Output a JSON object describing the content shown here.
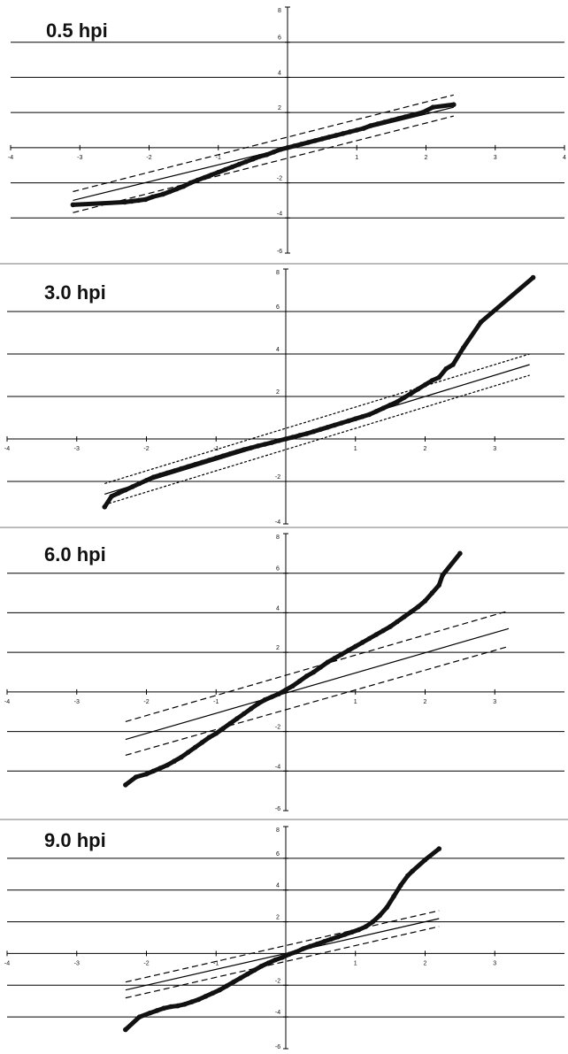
{
  "chart_data": [
    {
      "type": "scatter",
      "title": "0.5 hpi",
      "xlim": [
        -4,
        4
      ],
      "ylim": [
        -6,
        8
      ],
      "x_ticks": [
        "-4",
        "-3",
        "-2",
        "-1",
        "0",
        "1",
        "2",
        "3",
        "4"
      ],
      "y_ticks": [
        "-6",
        "-4",
        "-2",
        "2",
        "4",
        "6",
        "8"
      ],
      "grid": "horizontal",
      "reference_line": {
        "x": [
          -3.1,
          2.4
        ],
        "y": [
          -3.0,
          2.3
        ]
      },
      "envelope": {
        "upper": {
          "x": [
            -3.1,
            2.4
          ],
          "y": [
            -2.5,
            3.0
          ]
        },
        "lower": {
          "x": [
            -3.1,
            2.4
          ],
          "y": [
            -3.7,
            1.8
          ]
        }
      },
      "series": [
        {
          "x": [
            -3.1,
            -2.35,
            -2.25,
            -2.15,
            -2.05,
            -1.95,
            -1.8,
            -1.7,
            -1.6,
            -1.5,
            -1.4,
            -1.3,
            -1.2,
            -1.1,
            -1.0,
            -0.9,
            -0.8,
            -0.7,
            -0.6,
            -0.5,
            -0.4,
            -0.3,
            -0.2,
            -0.1,
            0.0,
            0.1,
            0.2,
            0.3,
            0.4,
            0.5,
            0.6,
            0.7,
            0.8,
            0.9,
            1.0,
            1.1,
            1.2,
            1.3,
            1.4,
            1.5,
            1.6,
            1.7,
            1.8,
            1.95,
            2.1,
            2.4
          ],
          "y": [
            -3.25,
            -3.1,
            -3.05,
            -3.0,
            -2.95,
            -2.8,
            -2.65,
            -2.5,
            -2.35,
            -2.2,
            -2.0,
            -1.85,
            -1.7,
            -1.55,
            -1.4,
            -1.25,
            -1.1,
            -0.95,
            -0.8,
            -0.65,
            -0.5,
            -0.4,
            -0.25,
            -0.1,
            0.0,
            0.1,
            0.2,
            0.3,
            0.4,
            0.5,
            0.6,
            0.7,
            0.8,
            0.9,
            1.0,
            1.1,
            1.25,
            1.35,
            1.45,
            1.55,
            1.65,
            1.75,
            1.85,
            2.0,
            2.3,
            2.45
          ]
        }
      ]
    },
    {
      "type": "scatter",
      "title": "3.0 hpi",
      "xlim": [
        -4,
        4
      ],
      "ylim": [
        -4,
        8
      ],
      "x_ticks": [
        "-4",
        "-3",
        "-2",
        "-1",
        "0",
        "1",
        "2",
        "3"
      ],
      "y_ticks": [
        "-4",
        "-2",
        "2",
        "4",
        "6",
        "8"
      ],
      "grid": "horizontal",
      "reference_line": {
        "x": [
          -2.6,
          3.5
        ],
        "y": [
          -2.6,
          3.5
        ]
      },
      "envelope": {
        "upper": {
          "x": [
            -2.6,
            3.5
          ],
          "y": [
            -2.1,
            4.0
          ]
        },
        "lower": {
          "x": [
            -2.6,
            3.5
          ],
          "y": [
            -3.1,
            3.0
          ]
        }
      },
      "series": [
        {
          "x": [
            -2.6,
            -2.5,
            -2.4,
            -2.3,
            -2.2,
            -2.1,
            -2.0,
            -1.9,
            -1.8,
            -1.7,
            -1.6,
            -1.5,
            -1.4,
            -1.3,
            -1.2,
            -1.1,
            -1.0,
            -0.9,
            -0.8,
            -0.7,
            -0.6,
            -0.5,
            -0.4,
            -0.3,
            -0.2,
            -0.1,
            0.0,
            0.1,
            0.2,
            0.3,
            0.4,
            0.5,
            0.6,
            0.7,
            0.8,
            0.9,
            1.0,
            1.1,
            1.2,
            1.3,
            1.4,
            1.5,
            1.6,
            1.7,
            1.8,
            1.9,
            2.0,
            2.1,
            2.2,
            2.3,
            2.4,
            2.55,
            2.8,
            3.55
          ],
          "y": [
            -3.2,
            -2.7,
            -2.55,
            -2.4,
            -2.25,
            -2.1,
            -1.95,
            -1.8,
            -1.7,
            -1.6,
            -1.5,
            -1.4,
            -1.3,
            -1.2,
            -1.1,
            -1.0,
            -0.9,
            -0.8,
            -0.7,
            -0.6,
            -0.5,
            -0.42,
            -0.33,
            -0.25,
            -0.17,
            -0.08,
            0.0,
            0.08,
            0.17,
            0.25,
            0.35,
            0.45,
            0.55,
            0.65,
            0.75,
            0.85,
            0.95,
            1.05,
            1.15,
            1.3,
            1.45,
            1.6,
            1.75,
            1.95,
            2.15,
            2.35,
            2.55,
            2.75,
            2.9,
            3.3,
            3.5,
            4.3,
            5.5,
            7.6
          ]
        }
      ]
    },
    {
      "type": "scatter",
      "title": "6.0 hpi",
      "xlim": [
        -4,
        4
      ],
      "ylim": [
        -6,
        8
      ],
      "x_ticks": [
        "-4",
        "-3",
        "-2",
        "-1",
        "0",
        "1",
        "2",
        "3"
      ],
      "y_ticks": [
        "-6",
        "-4",
        "-2",
        "2",
        "4",
        "6",
        "8"
      ],
      "grid": "horizontal",
      "reference_line": {
        "x": [
          -2.3,
          3.2
        ],
        "y": [
          -2.4,
          3.2
        ]
      },
      "envelope": {
        "upper": {
          "x": [
            -2.3,
            3.2
          ],
          "y": [
            -1.5,
            4.1
          ]
        },
        "lower": {
          "x": [
            -2.3,
            3.2
          ],
          "y": [
            -3.2,
            2.3
          ]
        }
      },
      "series": [
        {
          "x": [
            -2.3,
            -2.15,
            -2.0,
            -1.9,
            -1.8,
            -1.7,
            -1.6,
            -1.5,
            -1.4,
            -1.3,
            -1.2,
            -1.1,
            -1.0,
            -0.9,
            -0.8,
            -0.7,
            -0.6,
            -0.5,
            -0.4,
            -0.3,
            -0.2,
            -0.1,
            0.0,
            0.1,
            0.2,
            0.3,
            0.4,
            0.5,
            0.6,
            0.7,
            0.8,
            0.9,
            1.0,
            1.1,
            1.2,
            1.3,
            1.4,
            1.5,
            1.6,
            1.7,
            1.8,
            1.9,
            2.0,
            2.1,
            2.2,
            2.25,
            2.5
          ],
          "y": [
            -4.7,
            -4.3,
            -4.15,
            -4.0,
            -3.85,
            -3.7,
            -3.5,
            -3.3,
            -3.05,
            -2.8,
            -2.55,
            -2.3,
            -2.1,
            -1.85,
            -1.6,
            -1.35,
            -1.1,
            -0.85,
            -0.6,
            -0.4,
            -0.25,
            -0.1,
            0.1,
            0.3,
            0.55,
            0.8,
            1.0,
            1.25,
            1.5,
            1.7,
            1.9,
            2.1,
            2.3,
            2.5,
            2.7,
            2.9,
            3.1,
            3.3,
            3.55,
            3.8,
            4.05,
            4.3,
            4.6,
            5.0,
            5.4,
            5.9,
            7.0
          ]
        }
      ]
    },
    {
      "type": "scatter",
      "title": "9.0 hpi",
      "xlim": [
        -4,
        4
      ],
      "ylim": [
        -6,
        8
      ],
      "x_ticks": [
        "-4",
        "-3",
        "-2",
        "-1",
        "0",
        "1",
        "2",
        "3"
      ],
      "y_ticks": [
        "-6",
        "-4",
        "-2",
        "2",
        "4",
        "6",
        "8"
      ],
      "grid": "horizontal",
      "reference_line": {
        "x": [
          -2.3,
          2.2
        ],
        "y": [
          -2.3,
          2.2
        ]
      },
      "envelope": {
        "upper": {
          "x": [
            -2.3,
            2.2
          ],
          "y": [
            -1.8,
            2.7
          ]
        },
        "lower": {
          "x": [
            -2.3,
            2.2
          ],
          "y": [
            -2.8,
            1.7
          ]
        }
      },
      "series": [
        {
          "x": [
            -2.3,
            -2.1,
            -1.95,
            -1.85,
            -1.75,
            -1.65,
            -1.55,
            -1.45,
            -1.35,
            -1.25,
            -1.15,
            -1.05,
            -0.95,
            -0.85,
            -0.75,
            -0.65,
            -0.55,
            -0.45,
            -0.35,
            -0.25,
            -0.15,
            -0.05,
            0.05,
            0.15,
            0.25,
            0.35,
            0.45,
            0.55,
            0.65,
            0.75,
            0.85,
            0.95,
            1.05,
            1.15,
            1.25,
            1.35,
            1.45,
            1.55,
            1.65,
            1.75,
            1.82,
            2.0,
            2.2
          ],
          "y": [
            -4.8,
            -4.0,
            -3.75,
            -3.6,
            -3.45,
            -3.35,
            -3.3,
            -3.2,
            -3.05,
            -2.9,
            -2.7,
            -2.5,
            -2.3,
            -2.05,
            -1.8,
            -1.55,
            -1.3,
            -1.05,
            -0.8,
            -0.6,
            -0.4,
            -0.25,
            -0.05,
            0.1,
            0.3,
            0.45,
            0.6,
            0.75,
            0.9,
            1.05,
            1.2,
            1.35,
            1.5,
            1.7,
            2.0,
            2.4,
            2.9,
            3.6,
            4.3,
            4.9,
            5.2,
            5.9,
            6.6
          ]
        }
      ]
    }
  ]
}
